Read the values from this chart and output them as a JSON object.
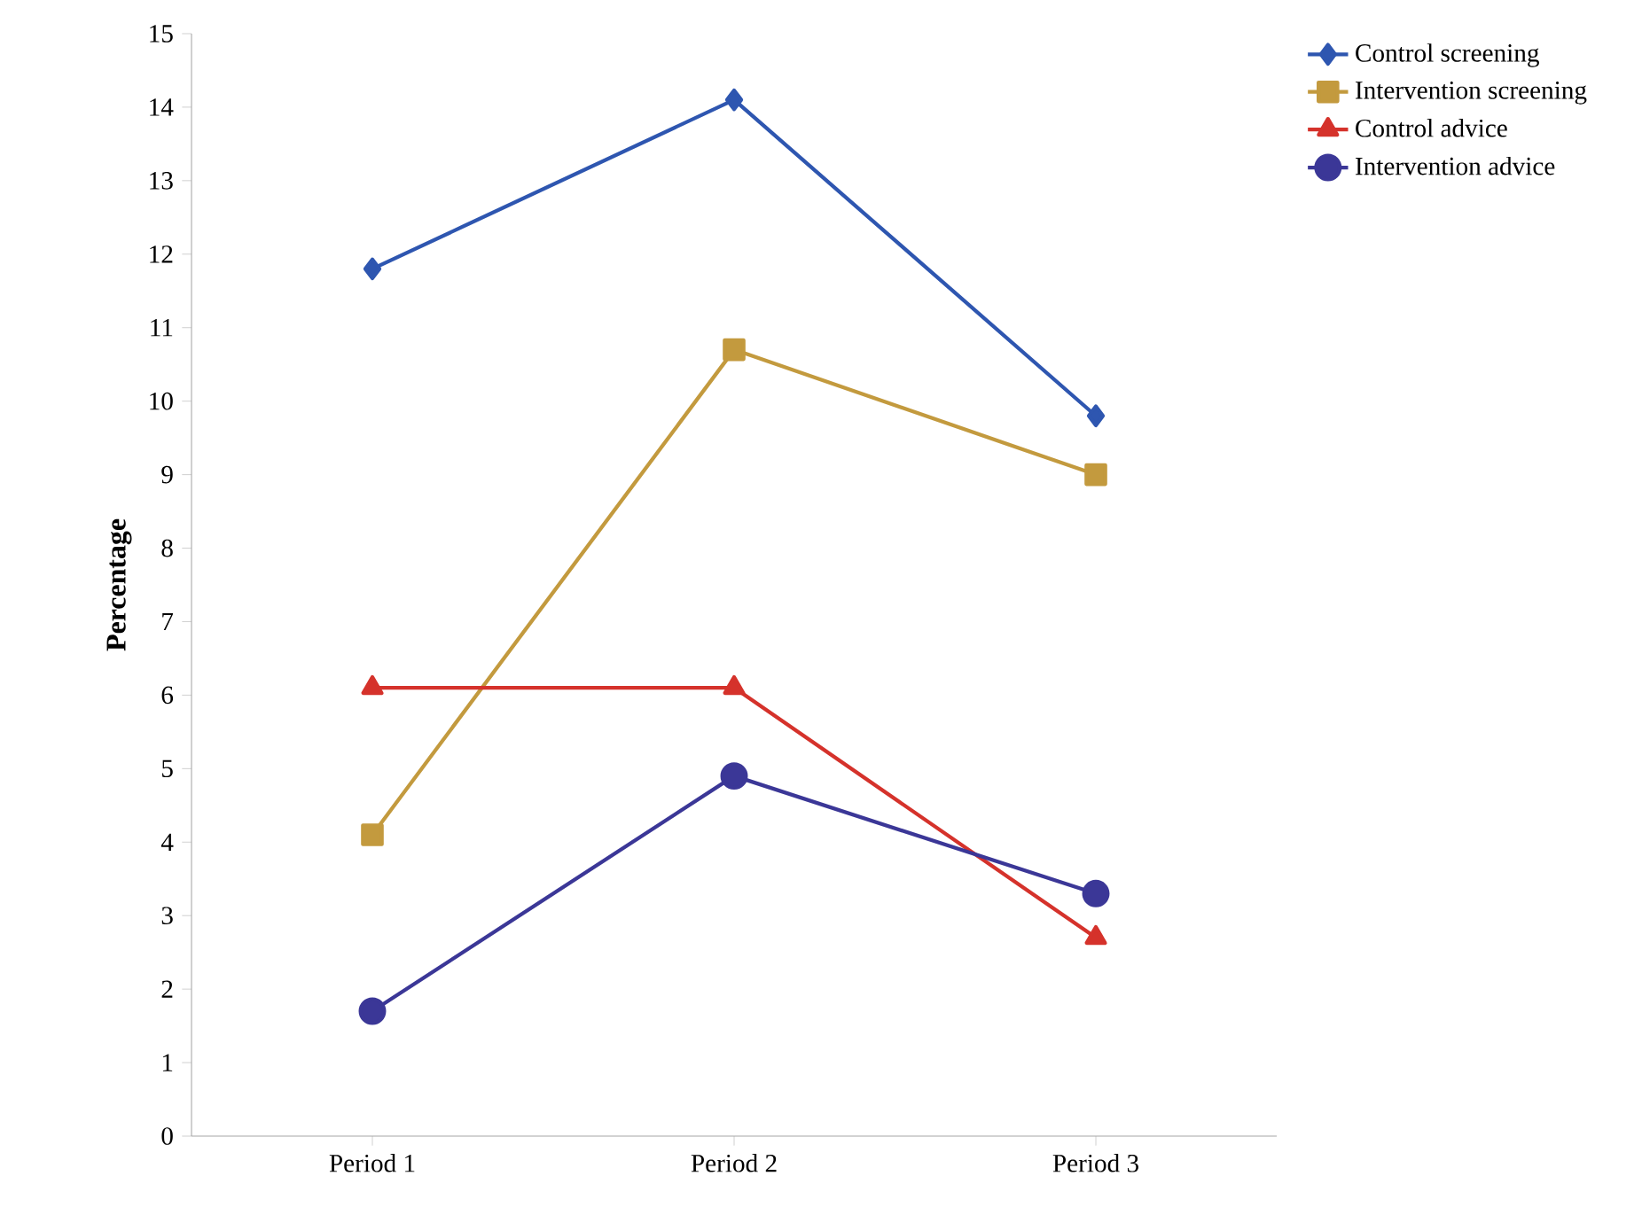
{
  "chart_data": {
    "type": "line",
    "ylabel": "Percentage",
    "categories": [
      "Period 1",
      "Period 2",
      "Period 3"
    ],
    "ylim": [
      0,
      15
    ],
    "yticks": [
      0,
      1,
      2,
      3,
      4,
      5,
      6,
      7,
      8,
      9,
      10,
      11,
      12,
      13,
      14,
      15
    ],
    "grid": false,
    "legend": "top right",
    "line_style": "solid",
    "series": [
      {
        "name": "Control screening",
        "color": "#2e56b0",
        "marker": "diamond",
        "values": [
          11.8,
          14.1,
          9.8
        ]
      },
      {
        "name": "Intervention screening",
        "color": "#c39a3e",
        "marker": "square",
        "values": [
          4.1,
          10.7,
          9.0
        ]
      },
      {
        "name": "Control advice",
        "color": "#d5322b",
        "marker": "triangle",
        "values": [
          6.1,
          6.1,
          2.7
        ]
      },
      {
        "name": "Intervention advice",
        "color": "#3b3797",
        "marker": "circle",
        "values": [
          1.7,
          4.9,
          3.3
        ]
      }
    ]
  }
}
